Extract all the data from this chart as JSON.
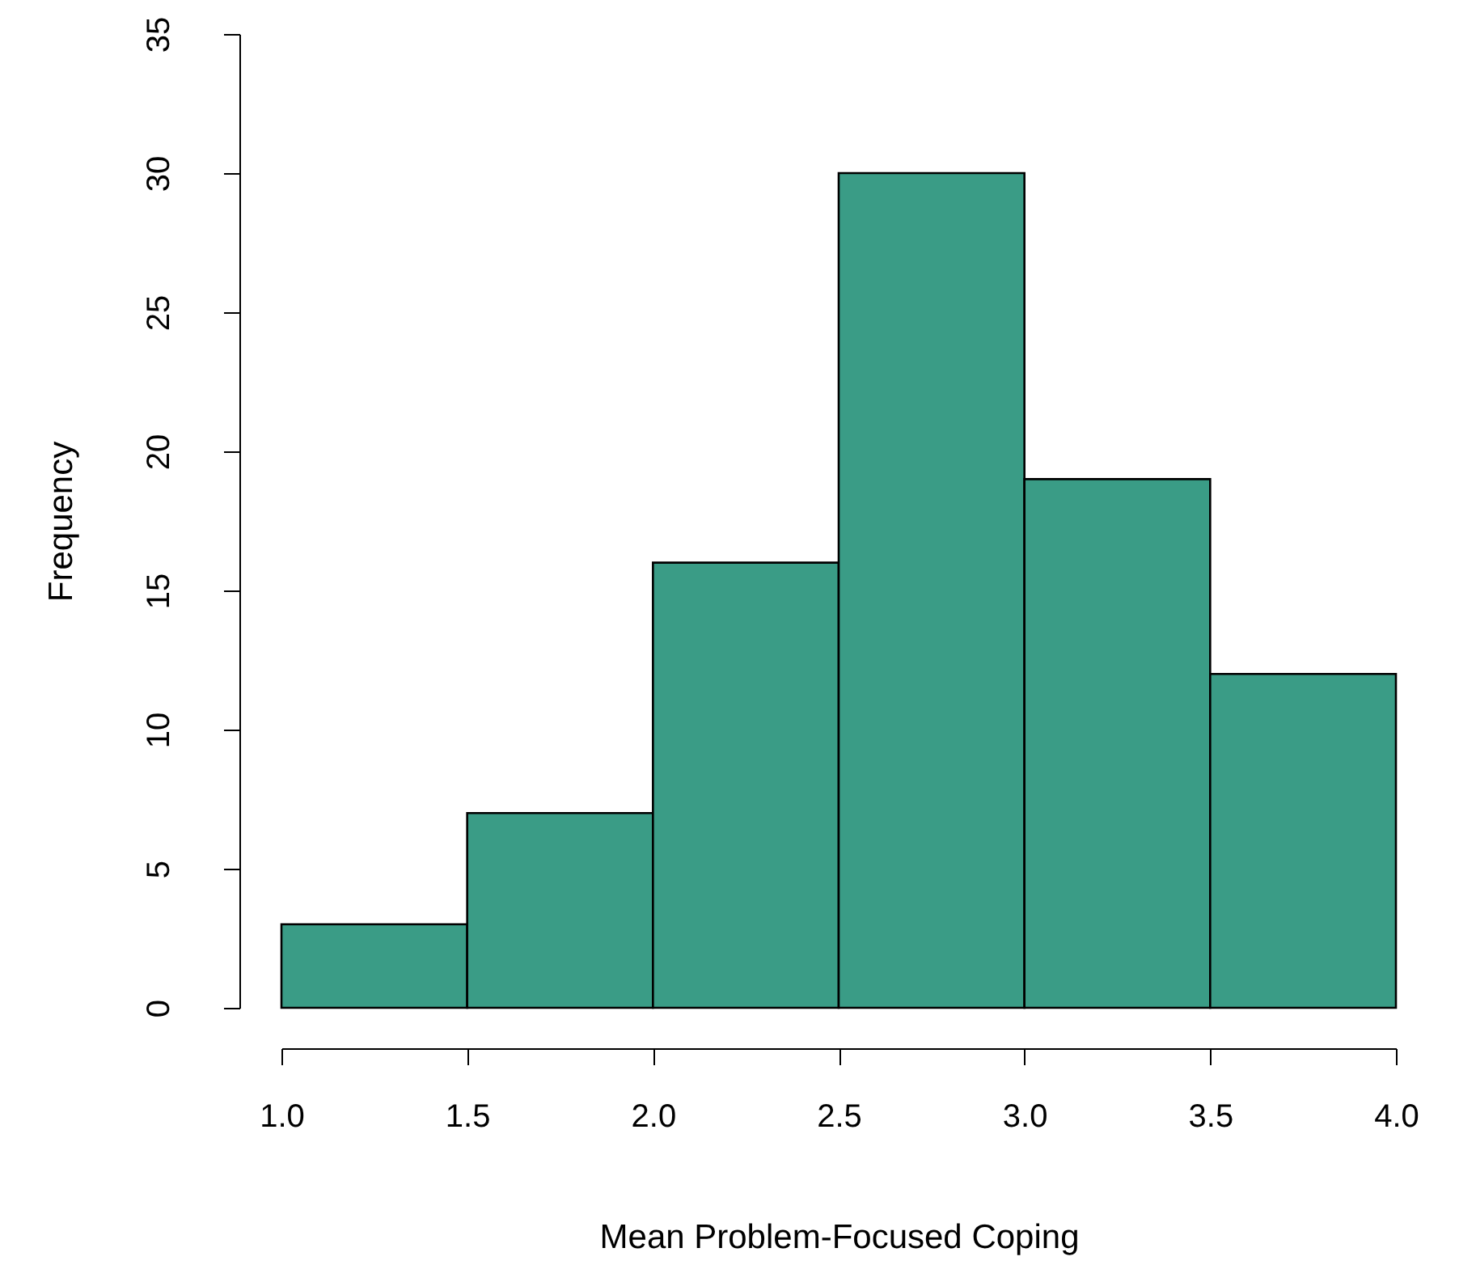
{
  "chart_data": {
    "type": "histogram",
    "xlabel": "Mean Problem-Focused Coping",
    "ylabel": "Frequency",
    "bins": [
      1.0,
      1.5,
      2.0,
      2.5,
      3.0,
      3.5,
      4.0
    ],
    "values": [
      3,
      7,
      16,
      30,
      19,
      12
    ],
    "color": "#3a9c86",
    "xlim": [
      1.0,
      4.0
    ],
    "xticks": [
      {
        "value": 1.0,
        "label": "1.0"
      },
      {
        "value": 1.5,
        "label": "1.5"
      },
      {
        "value": 2.0,
        "label": "2.0"
      },
      {
        "value": 2.5,
        "label": "2.5"
      },
      {
        "value": 3.0,
        "label": "3.0"
      },
      {
        "value": 3.5,
        "label": "3.5"
      },
      {
        "value": 4.0,
        "label": "4.0"
      }
    ],
    "ylim": [
      0,
      35
    ],
    "yticks": [
      0,
      5,
      10,
      15,
      20,
      25,
      30,
      35
    ],
    "grid": false
  }
}
